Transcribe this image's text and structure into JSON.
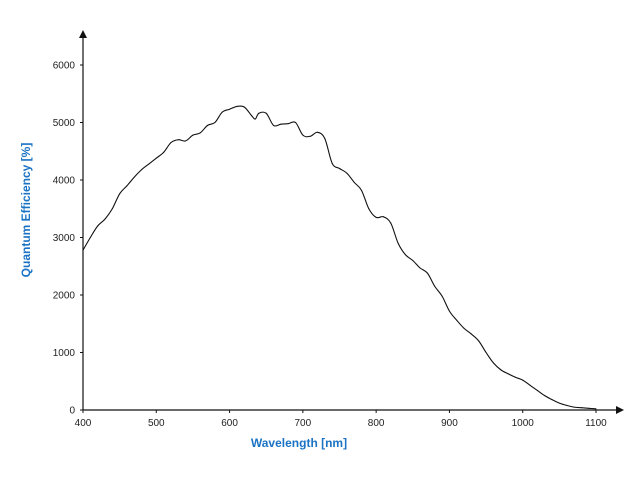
{
  "chart_data": {
    "type": "line",
    "title": "",
    "xlabel": "Wavelength [nm]",
    "ylabel": "Quantum Efficiency [%]",
    "xlim": [
      400,
      1100
    ],
    "ylim": [
      0,
      6000
    ],
    "xticks": [
      400,
      500,
      600,
      700,
      800,
      900,
      1000,
      1100
    ],
    "yticks": [
      0,
      1000,
      2000,
      3000,
      4000,
      5000,
      6000
    ],
    "grid": false,
    "legend": "none",
    "axis_title_color": "#1a73c4",
    "line_color": "#111111",
    "series": [
      {
        "x": [
          400,
          410,
          420,
          430,
          440,
          450,
          460,
          470,
          480,
          490,
          500,
          510,
          520,
          530,
          540,
          550,
          560,
          570,
          580,
          590,
          600,
          610,
          620,
          630,
          635,
          640,
          650,
          660,
          670,
          680,
          690,
          700,
          710,
          720,
          730,
          740,
          750,
          760,
          770,
          780,
          790,
          800,
          810,
          820,
          830,
          840,
          850,
          860,
          870,
          880,
          890,
          900,
          910,
          920,
          930,
          940,
          950,
          960,
          970,
          980,
          990,
          1000,
          1010,
          1020,
          1030,
          1040,
          1050,
          1060,
          1070,
          1080,
          1090,
          1100
        ],
        "y": [
          2780,
          3000,
          3200,
          3320,
          3500,
          3760,
          3900,
          4050,
          4180,
          4280,
          4380,
          4480,
          4650,
          4700,
          4680,
          4780,
          4820,
          4950,
          5000,
          5180,
          5230,
          5280,
          5270,
          5120,
          5060,
          5160,
          5160,
          4950,
          4970,
          4980,
          5000,
          4780,
          4760,
          4830,
          4720,
          4290,
          4200,
          4120,
          3960,
          3820,
          3500,
          3350,
          3360,
          3250,
          2900,
          2700,
          2600,
          2470,
          2380,
          2150,
          1980,
          1720,
          1560,
          1420,
          1320,
          1200,
          1000,
          820,
          700,
          630,
          570,
          520,
          430,
          340,
          250,
          180,
          120,
          80,
          50,
          40,
          30,
          20
        ]
      }
    ]
  }
}
